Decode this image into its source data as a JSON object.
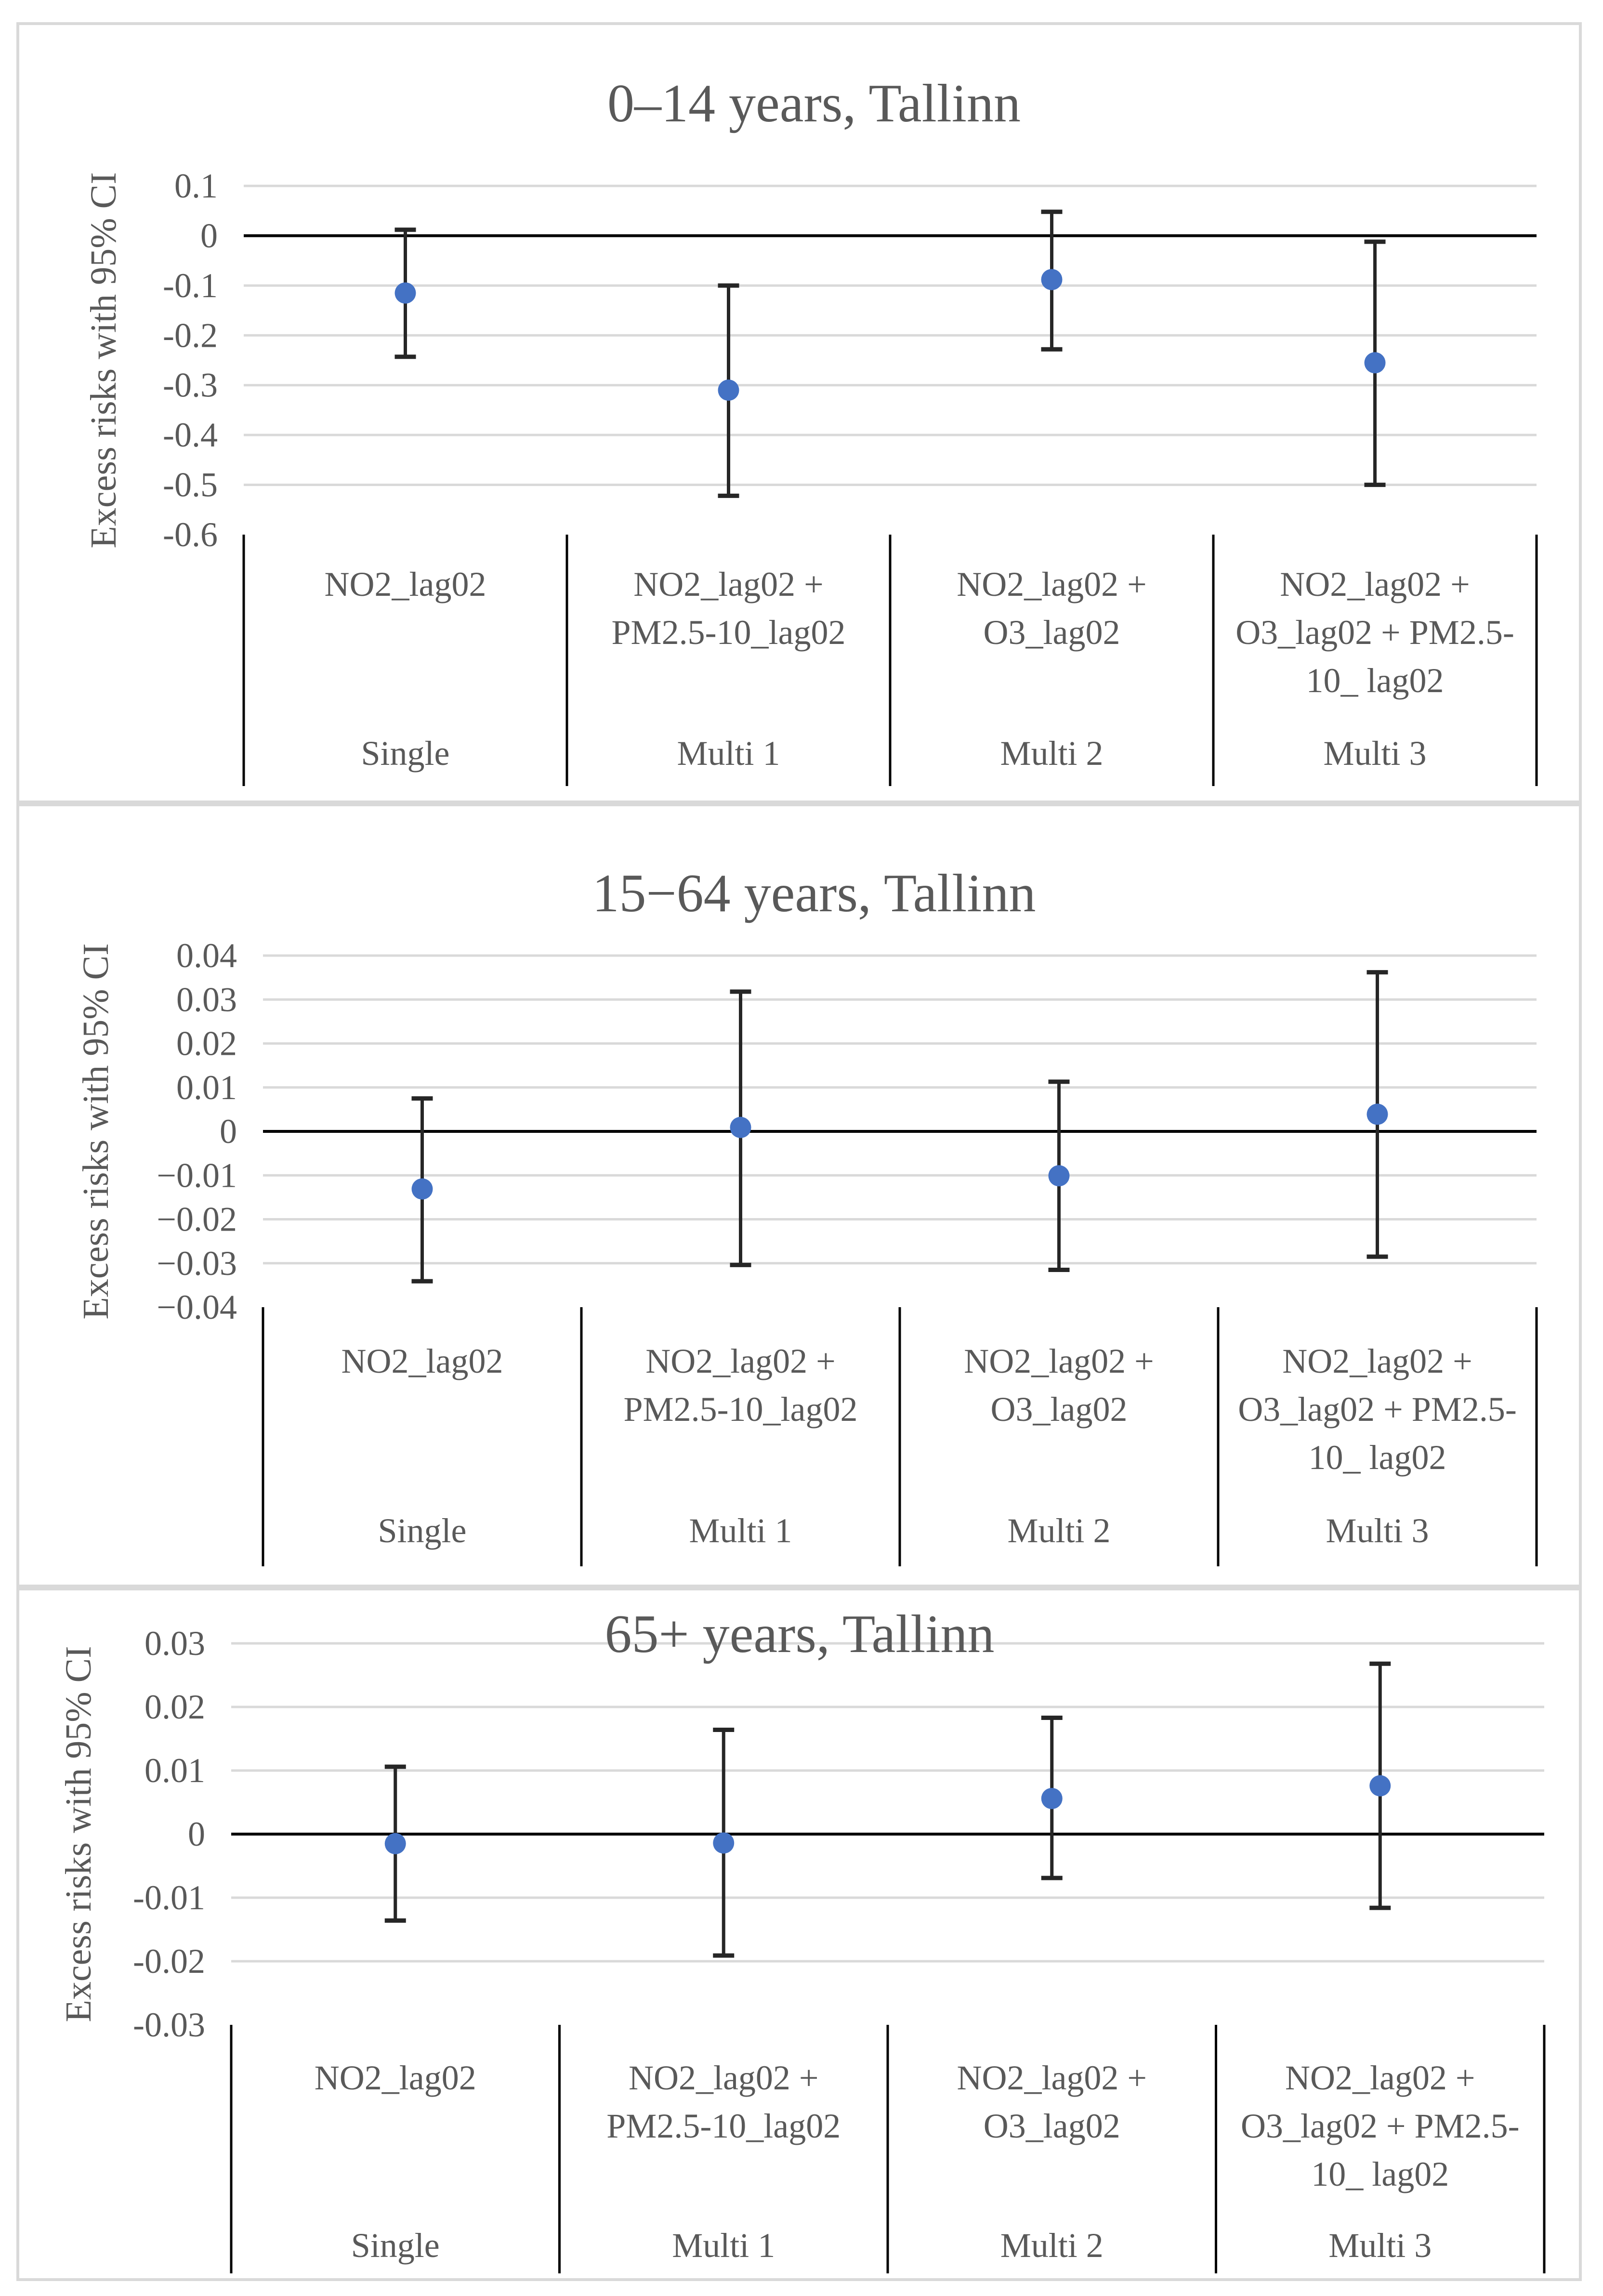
{
  "chart_data": [
    {
      "type": "scatter",
      "subtype": "point-with-error-bars",
      "title": "0–14 years, Tallinn",
      "ylabel": "Excess risks with 95% CI",
      "xlabel": "",
      "ylim": [
        -0.6,
        0.1
      ],
      "yticks": [
        0.1,
        0,
        -0.1,
        -0.2,
        -0.3,
        -0.4,
        -0.5,
        -0.6
      ],
      "ytick_labels": [
        "0.1",
        "0",
        "-0.1",
        "-0.2",
        "-0.3",
        "-0.4",
        "-0.5",
        "-0.6"
      ],
      "grid": true,
      "categories": [
        {
          "model": "NO2_lag02",
          "group": "Single"
        },
        {
          "model": "NO2_lag02 + PM2.5-10_lag02",
          "group": "Multi 1"
        },
        {
          "model": "NO2_lag02 + O3_lag02",
          "group": "Multi 2"
        },
        {
          "model": "NO2_lag02 + O3_lag02 + PM2.5-10_ lag02",
          "group": "Multi 3"
        }
      ],
      "category_lines": [
        [
          "NO2_lag02"
        ],
        [
          "NO2_lag02 +",
          "PM2.5-10_lag02"
        ],
        [
          "NO2_lag02 +",
          "O3_lag02"
        ],
        [
          "NO2_lag02 +",
          "O3_lag02 + PM2.5-",
          "10_ lag02"
        ]
      ],
      "series": [
        {
          "name": "Excess risk",
          "values": [
            -0.115,
            -0.31,
            -0.088,
            -0.255
          ],
          "lower": [
            -0.243,
            -0.522,
            -0.228,
            -0.5
          ],
          "upper": [
            0.012,
            -0.1,
            0.048,
            -0.012
          ]
        }
      ]
    },
    {
      "type": "scatter",
      "subtype": "point-with-error-bars",
      "title": "15−64 years, Tallinn",
      "ylabel": "Excess risks with 95% CI",
      "xlabel": "",
      "ylim": [
        -0.04,
        0.04
      ],
      "yticks": [
        0.04,
        0.03,
        0.02,
        0.01,
        0,
        -0.01,
        -0.02,
        -0.03,
        -0.04
      ],
      "ytick_labels": [
        "0.04",
        "0.03",
        "0.02",
        "0.01",
        "0",
        "−0.01",
        "−0.02",
        "−0.03",
        "−0.04"
      ],
      "grid": true,
      "categories": [
        {
          "model": "NO2_lag02",
          "group": "Single"
        },
        {
          "model": "NO2_lag02 + PM2.5-10_lag02",
          "group": "Multi 1"
        },
        {
          "model": "NO2_lag02 + O3_lag02",
          "group": "Multi 2"
        },
        {
          "model": "NO2_lag02 + O3_lag02 + PM2.5-10_ lag02",
          "group": "Multi 3"
        }
      ],
      "category_lines": [
        [
          "NO2_lag02"
        ],
        [
          "NO2_lag02 +",
          "PM2.5-10_lag02"
        ],
        [
          "NO2_lag02 +",
          "O3_lag02"
        ],
        [
          "NO2_lag02 +",
          "O3_lag02 + PM2.5-",
          "10_ lag02"
        ]
      ],
      "series": [
        {
          "name": "Excess risk",
          "values": [
            -0.0131,
            0.0009,
            -0.0101,
            0.0039
          ],
          "lower": [
            -0.0341,
            -0.0304,
            -0.0315,
            -0.0285
          ],
          "upper": [
            0.0075,
            0.0318,
            0.0113,
            0.0362
          ]
        }
      ]
    },
    {
      "type": "scatter",
      "subtype": "point-with-error-bars",
      "title": "65+ years, Tallinn",
      "ylabel": "Excess risks with 95% CI",
      "xlabel": "",
      "ylim": [
        -0.03,
        0.03
      ],
      "yticks": [
        0.03,
        0.02,
        0.01,
        0,
        -0.01,
        -0.02,
        -0.03
      ],
      "ytick_labels": [
        "0.03",
        "0.02",
        "0.01",
        "0",
        "-0.01",
        "-0.02",
        "-0.03"
      ],
      "grid": true,
      "categories": [
        {
          "model": "NO2_lag02",
          "group": "Single"
        },
        {
          "model": "NO2_lag02 + PM2.5-10_lag02",
          "group": "Multi 1"
        },
        {
          "model": "NO2_lag02 + O3_lag02",
          "group": "Multi 2"
        },
        {
          "model": "NO2_lag02 + O3_lag02 + PM2.5-10_ lag02",
          "group": "Multi 3"
        }
      ],
      "category_lines": [
        [
          "NO2_lag02"
        ],
        [
          "NO2_lag02 +",
          "PM2.5-10_lag02"
        ],
        [
          "NO2_lag02 +",
          "O3_lag02"
        ],
        [
          "NO2_lag02 +",
          "O3_lag02 + PM2.5-",
          "10_ lag02"
        ]
      ],
      "series": [
        {
          "name": "Excess risk",
          "values": [
            -0.0015,
            -0.0014,
            0.0056,
            0.0076
          ],
          "lower": [
            -0.0136,
            -0.0191,
            -0.0069,
            -0.0116
          ],
          "upper": [
            0.0106,
            0.0164,
            0.0183,
            0.0268
          ]
        }
      ]
    }
  ],
  "colors": {
    "point": "#4472c4",
    "error_bar": "#262626",
    "gridline": "#d9d9d9",
    "axis": "#000000",
    "text": "#595959",
    "panel_border": "#d9d9d9"
  }
}
